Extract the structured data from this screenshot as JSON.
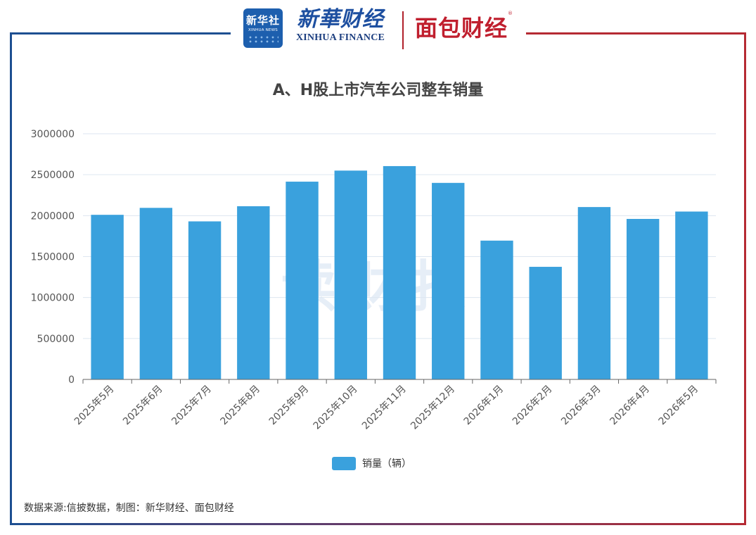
{
  "header": {
    "xinhua_badge_cn": "新华社",
    "xinhua_badge_en": "XINHUA NEWS",
    "xinhua_finance_cn": "新華财经",
    "xinhua_finance_en": "XINHUA FINANCE",
    "mianbao_name": "面包财经",
    "registered_mark": "®"
  },
  "watermark": "读财报",
  "source": "数据来源:信披数据，制图：新华财经、面包财经",
  "colors": {
    "bar": "#3aa1dd",
    "frame_left": "#1d4f91",
    "frame_right": "#b52a33",
    "grid": "#dde6f0"
  },
  "chart_data": {
    "type": "bar",
    "title": "A、H股上市汽车公司整车销量",
    "xlabel": "",
    "ylabel": "",
    "categories": [
      "2025年5月",
      "2025年6月",
      "2025年7月",
      "2025年8月",
      "2025年9月",
      "2025年10月",
      "2025年11月",
      "2025年12月",
      "2026年1月",
      "2026年2月",
      "2026年3月",
      "2026年4月",
      "2026年5月"
    ],
    "series": [
      {
        "name": "销量（辆）",
        "values": [
          2010000,
          2095000,
          1930000,
          2115000,
          2415000,
          2550000,
          2605000,
          2400000,
          1695000,
          1375000,
          2105000,
          1960000,
          2050000
        ]
      }
    ],
    "ylim": [
      0,
      3000000
    ],
    "yticks": [
      "0",
      "500000",
      "1000000",
      "1500000",
      "2000000",
      "2500000",
      "3000000"
    ],
    "grid": true,
    "legend_position": "bottom-center"
  }
}
